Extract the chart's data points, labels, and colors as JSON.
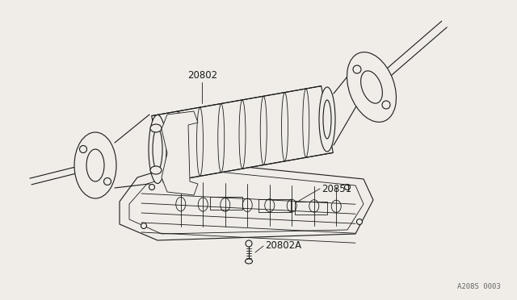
{
  "bg_color": "#f0ede8",
  "line_color": "#1a1a1a",
  "label_color": "#1a1a1a",
  "watermark": "A208S 0003",
  "label_20802": [
    232,
    100
  ],
  "label_20851": [
    398,
    234
  ],
  "label_20802A": [
    328,
    305
  ],
  "title_fontsize": 8.5,
  "watermark_fontsize": 6.5
}
